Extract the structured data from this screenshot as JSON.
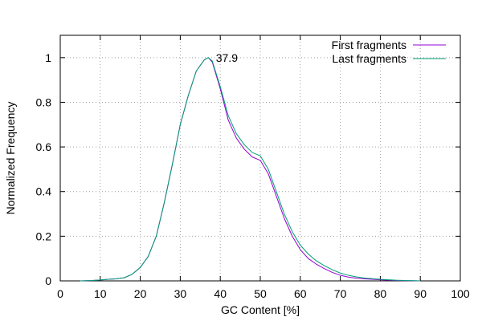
{
  "chart_data": {
    "type": "line",
    "xlabel": "GC Content [%]",
    "ylabel": "Normalized Frequency",
    "xlim": [
      0,
      100
    ],
    "ylim": [
      0,
      1.1
    ],
    "x_ticks": [
      "0",
      "10",
      "20",
      "30",
      "40",
      "50",
      "60",
      "70",
      "80",
      "90",
      "100"
    ],
    "y_ticks": [
      "0",
      "0.2",
      "0.4",
      "0.6",
      "0.8",
      "1"
    ],
    "x_tick_values": [
      0,
      10,
      20,
      30,
      40,
      50,
      60,
      70,
      80,
      90,
      100
    ],
    "y_tick_values": [
      0,
      0.2,
      0.4,
      0.6,
      0.8,
      1
    ],
    "grid": true,
    "legend_position": "top-right",
    "annotation": {
      "text": "37.9",
      "x": 37.9,
      "y": 1.0
    },
    "series": [
      {
        "name": "First fragments",
        "color": "#9400d3",
        "x": [
          5,
          8,
          10,
          12,
          14,
          16,
          18,
          20,
          22,
          24,
          26,
          28,
          30,
          32,
          34,
          36,
          37,
          38,
          40,
          42,
          44,
          46,
          48,
          50,
          52,
          54,
          56,
          58,
          60,
          62,
          64,
          66,
          68,
          70,
          72,
          74,
          76,
          78,
          80,
          82,
          84,
          86,
          88,
          90
        ],
        "y": [
          0.0,
          0.002,
          0.004,
          0.007,
          0.009,
          0.014,
          0.03,
          0.06,
          0.11,
          0.2,
          0.35,
          0.52,
          0.7,
          0.83,
          0.94,
          0.99,
          1.0,
          0.98,
          0.86,
          0.72,
          0.64,
          0.59,
          0.555,
          0.54,
          0.48,
          0.38,
          0.28,
          0.2,
          0.14,
          0.1,
          0.075,
          0.055,
          0.038,
          0.025,
          0.017,
          0.012,
          0.009,
          0.007,
          0.005,
          0.003,
          0.002,
          0.001,
          0.001,
          0.0
        ]
      },
      {
        "name": "Last fragments",
        "color": "#009e73",
        "x": [
          5,
          8,
          10,
          12,
          14,
          16,
          18,
          20,
          22,
          24,
          26,
          28,
          30,
          32,
          34,
          36,
          37,
          38,
          40,
          42,
          44,
          46,
          48,
          50,
          52,
          54,
          56,
          58,
          60,
          62,
          64,
          66,
          68,
          70,
          72,
          74,
          76,
          78,
          80,
          82,
          84,
          86,
          88,
          90
        ],
        "y": [
          0.0,
          0.002,
          0.004,
          0.007,
          0.009,
          0.014,
          0.03,
          0.06,
          0.11,
          0.2,
          0.35,
          0.52,
          0.7,
          0.83,
          0.94,
          0.99,
          1.0,
          0.985,
          0.87,
          0.74,
          0.66,
          0.61,
          0.575,
          0.56,
          0.5,
          0.4,
          0.3,
          0.22,
          0.16,
          0.12,
          0.09,
          0.068,
          0.05,
          0.035,
          0.025,
          0.018,
          0.013,
          0.01,
          0.007,
          0.005,
          0.003,
          0.002,
          0.001,
          0.0
        ]
      }
    ]
  }
}
